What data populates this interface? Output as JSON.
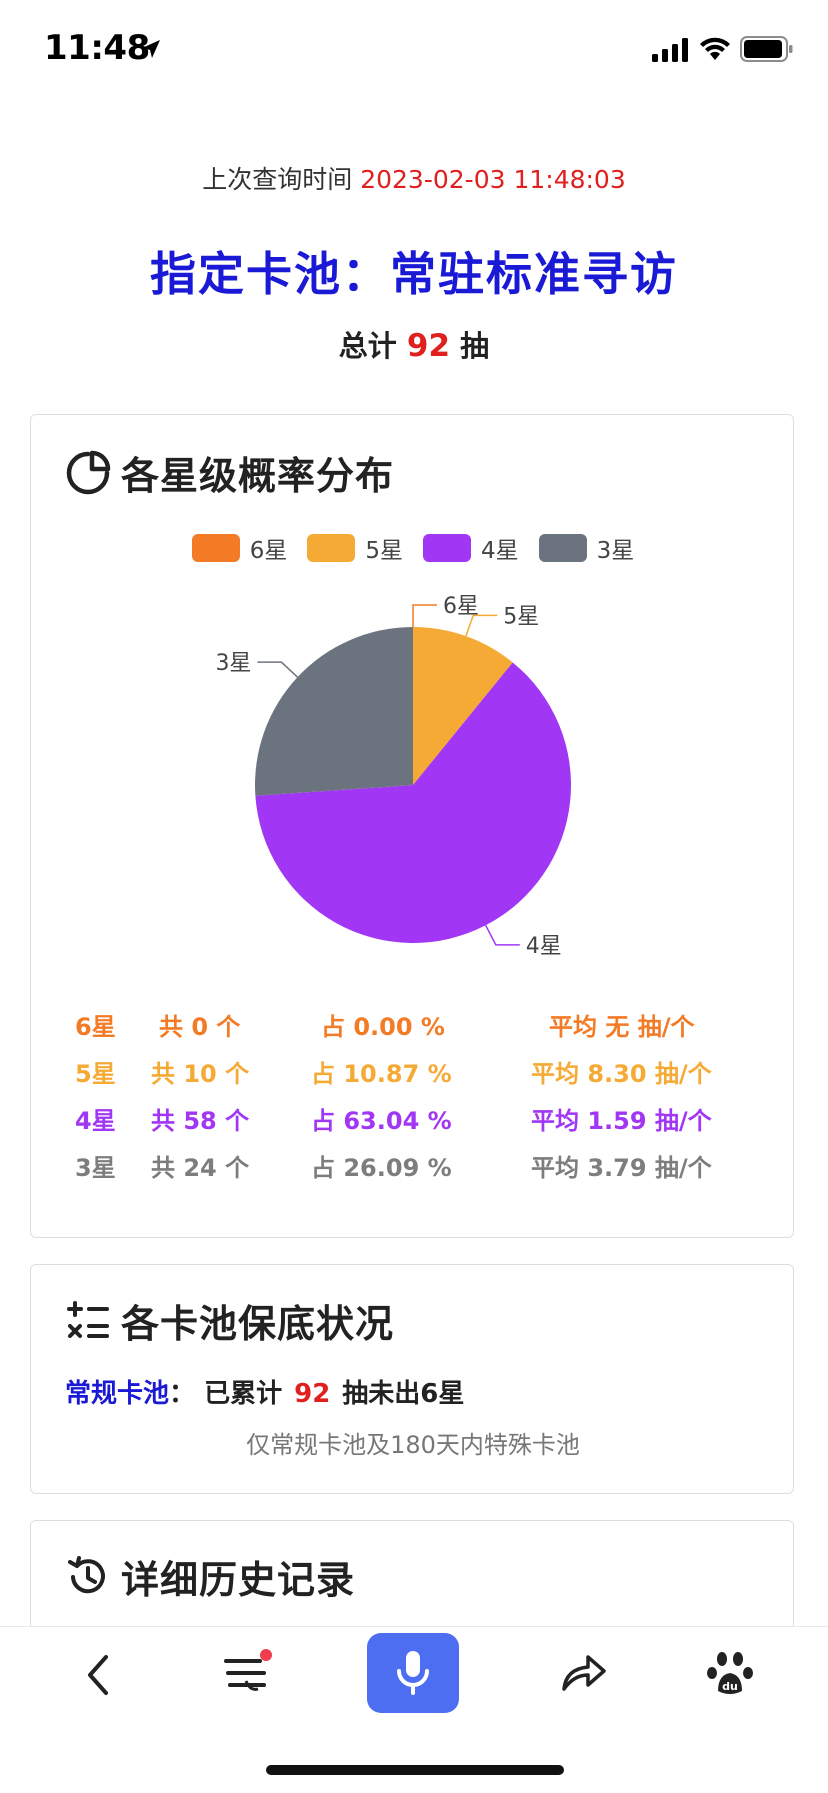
{
  "status_bar": {
    "time": "11:48"
  },
  "header": {
    "query_time_label": "上次查询时间",
    "query_time_value": "2023-02-03 11:48:03",
    "pool_title": "指定卡池：常驻标准寻访",
    "total_prefix": "总计",
    "total_count": "92",
    "total_suffix": "抽"
  },
  "distribution_card": {
    "title": "各星级概率分布",
    "icon": "pie-chart-icon",
    "legend": [
      {
        "label": "6星",
        "color": "#f47b26"
      },
      {
        "label": "5星",
        "color": "#f5aa35"
      },
      {
        "label": "4星",
        "color": "#a136f4"
      },
      {
        "label": "3星",
        "color": "#6b737e"
      }
    ],
    "rows": [
      {
        "star": "6星",
        "count": "共 0 个",
        "pct": "占 0.00 %",
        "avg": "平均 无 抽/个",
        "color": "#f47b26"
      },
      {
        "star": "5星",
        "count": "共 10 个",
        "pct": "占 10.87 %",
        "avg": "平均 8.30 抽/个",
        "color": "#f5aa35"
      },
      {
        "star": "4星",
        "count": "共 58 个",
        "pct": "占 63.04 %",
        "avg": "平均 1.59 抽/个",
        "color": "#a136f4"
      },
      {
        "star": "3星",
        "count": "共 24 个",
        "pct": "占 26.09 %",
        "avg": "平均 3.79 抽/个",
        "color": "#7d7d7d"
      }
    ]
  },
  "chart_data": {
    "type": "pie",
    "categories": [
      "6星",
      "5星",
      "4星",
      "3星"
    ],
    "values": [
      0,
      10,
      58,
      24
    ],
    "colors": [
      "#f47b26",
      "#f5aa35",
      "#a136f4",
      "#6b737e"
    ],
    "legend_position": "top"
  },
  "pity_card": {
    "title": "各卡池保底状况",
    "icon": "calculator-icon",
    "pool_name": "常规卡池",
    "colon": "：",
    "accum_label": "已累计",
    "accum_count": "92",
    "accum_suffix": "抽未出6星",
    "note": "仅常规卡池及180天内特殊卡池"
  },
  "history_card": {
    "title": "详细历史记录",
    "icon": "history-icon"
  },
  "toolbar": {
    "items": [
      "back-icon",
      "menu-icon",
      "microphone-icon",
      "share-icon",
      "paw-icon"
    ]
  }
}
